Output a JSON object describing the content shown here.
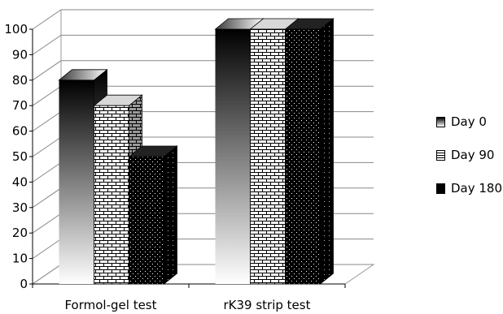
{
  "chart_data": {
    "type": "bar",
    "categories": [
      "Formol-gel test",
      "rK39 strip test"
    ],
    "series": [
      {
        "name": "Day 0",
        "values": [
          80,
          100
        ],
        "color": "#000000",
        "fill_style": "gradient"
      },
      {
        "name": "Day 90",
        "values": [
          70,
          100
        ],
        "color": "#ffffff",
        "fill_style": "brick"
      },
      {
        "name": "Day 180",
        "values": [
          50,
          100
        ],
        "color": "#000000",
        "fill_style": "dotted"
      }
    ],
    "title": "",
    "xlabel": "",
    "ylabel": "",
    "ylim": [
      0,
      100
    ],
    "yticks": [
      "0",
      "10",
      "20",
      "30",
      "40",
      "50",
      "60",
      "70",
      "80",
      "90",
      "100"
    ],
    "grid": true,
    "style": "3d",
    "legend_position": "right"
  }
}
